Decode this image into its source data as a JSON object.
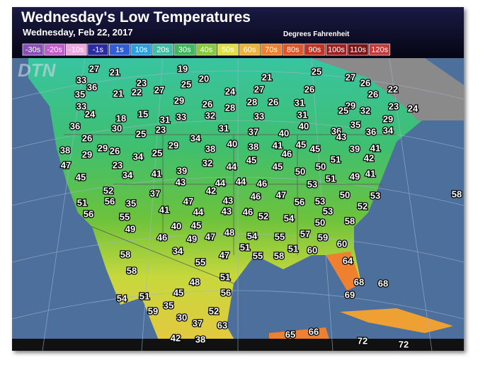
{
  "header": {
    "title": "Wednesday's Low Temperatures",
    "subtitle": "Wednesday, Feb 22, 2017",
    "units": "Degrees Fahrenheit"
  },
  "legend": [
    {
      "label": "-30s",
      "color": "#8a4fb8"
    },
    {
      "label": "-20s",
      "color": "#c25ccf"
    },
    {
      "label": "-10s",
      "color": "#f0a6e0"
    },
    {
      "label": "-1s",
      "color": "#2c2ca0"
    },
    {
      "label": "1s",
      "color": "#2f5fd8"
    },
    {
      "label": "10s",
      "color": "#2f9ee0"
    },
    {
      "label": "20s",
      "color": "#3fbfa6"
    },
    {
      "label": "30s",
      "color": "#3fb85e"
    },
    {
      "label": "40s",
      "color": "#86cc3c"
    },
    {
      "label": "50s",
      "color": "#e2e040"
    },
    {
      "label": "60s",
      "color": "#efb233"
    },
    {
      "label": "70s",
      "color": "#ee8030"
    },
    {
      "label": "80s",
      "color": "#e05626"
    },
    {
      "label": "90s",
      "color": "#c43322"
    },
    {
      "label": "100s",
      "color": "#a02020"
    },
    {
      "label": "110s",
      "color": "#801414"
    },
    {
      "label": "120s",
      "color": "#c23a3a"
    }
  ],
  "logo": "DTN",
  "temperatures": [
    27,
    21,
    19,
    25,
    27,
    26,
    22,
    33,
    36,
    23,
    20,
    21,
    35,
    21,
    22,
    27,
    25,
    24,
    27,
    26,
    26,
    33,
    24,
    29,
    26,
    28,
    28,
    26,
    31,
    29,
    32,
    23,
    24,
    25,
    18,
    15,
    31,
    33,
    32,
    33,
    31,
    29,
    36,
    30,
    23,
    25,
    31,
    37,
    40,
    40,
    36,
    43,
    35,
    36,
    34,
    26,
    34,
    38,
    40,
    38,
    41,
    45,
    45,
    39,
    41,
    38,
    29,
    29,
    26,
    34,
    25,
    29,
    46,
    42,
    47,
    23,
    32,
    44,
    45,
    45,
    50,
    50,
    51,
    49,
    41,
    45,
    34,
    41,
    39,
    43,
    44,
    44,
    46,
    53,
    51,
    52,
    37,
    42,
    46,
    47,
    50,
    53,
    51,
    56,
    35,
    47,
    43,
    56,
    53,
    52,
    56,
    55,
    41,
    44,
    43,
    46,
    52,
    54,
    53,
    49,
    40,
    45,
    50,
    58,
    46,
    49,
    47,
    48,
    54,
    55,
    57,
    59,
    60,
    51,
    51,
    60,
    58,
    34,
    47,
    55,
    58,
    64,
    58,
    55,
    51,
    48,
    56,
    68,
    68,
    54,
    51,
    45,
    69,
    35,
    59,
    52,
    30,
    37,
    63,
    65,
    66,
    72,
    72,
    42,
    38,
    58
  ]
}
